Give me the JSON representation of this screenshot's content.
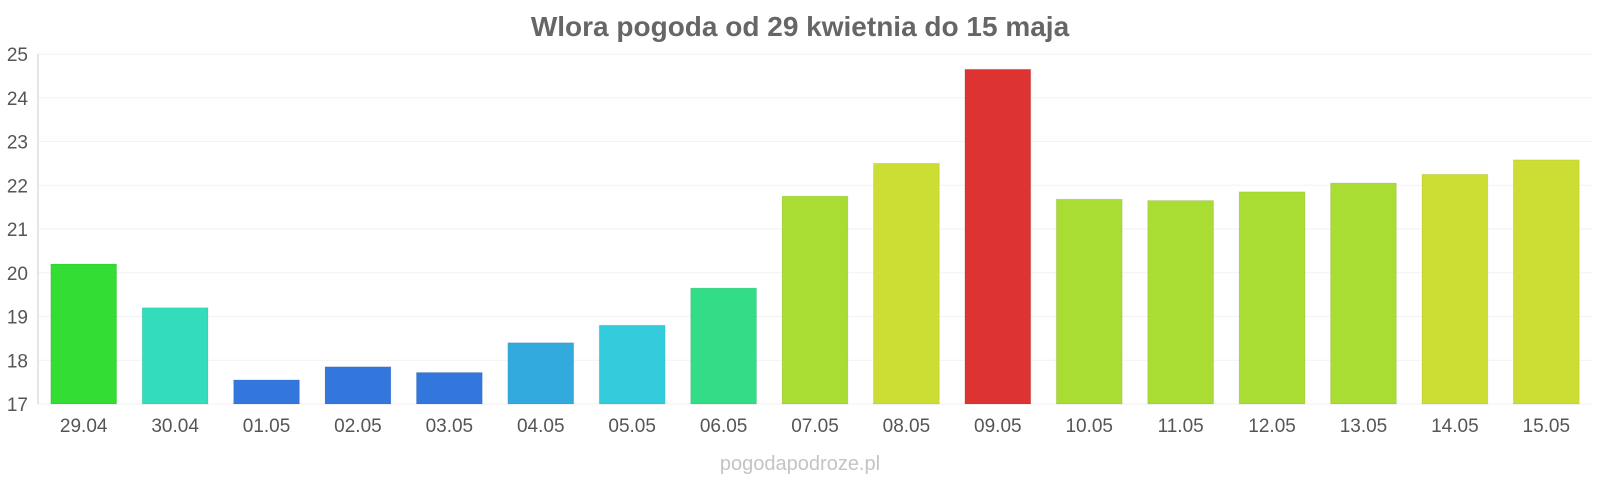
{
  "chart_data": {
    "type": "bar",
    "title": "Wlora pogoda od 29 kwietnia do 15 maja",
    "xlabel": "",
    "ylabel": "",
    "ylim": [
      17,
      25
    ],
    "yticks": [
      17,
      18,
      19,
      20,
      21,
      22,
      23,
      24,
      25
    ],
    "grid": true,
    "legend": "none",
    "categories": [
      "29.04",
      "30.04",
      "01.05",
      "02.05",
      "03.05",
      "04.05",
      "05.05",
      "06.05",
      "07.05",
      "08.05",
      "09.05",
      "10.05",
      "11.05",
      "12.05",
      "13.05",
      "14.05",
      "15.05"
    ],
    "values": [
      20.2,
      19.2,
      17.55,
      17.85,
      17.72,
      18.4,
      18.8,
      19.65,
      21.75,
      22.5,
      24.65,
      21.68,
      21.65,
      21.85,
      22.05,
      22.25,
      22.58
    ],
    "colors": [
      "#33dd33",
      "#33ddbb",
      "#3377dd",
      "#3377dd",
      "#3377dd",
      "#33aadd",
      "#33ccdd",
      "#33dd88",
      "#aadd33",
      "#ccdd33",
      "#dd3333",
      "#aadd33",
      "#aadd33",
      "#aadd33",
      "#aadd33",
      "#ccdd33",
      "#ccdd33"
    ]
  },
  "watermark": "pogodapodroze.pl"
}
